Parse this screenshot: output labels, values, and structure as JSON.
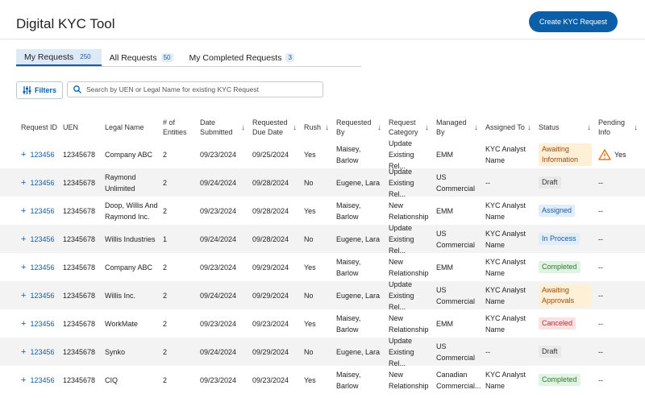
{
  "header": {
    "title": "Digital KYC Tool",
    "button": "Create KYC Request"
  },
  "tabs": [
    {
      "label": "My Requests",
      "count": 250,
      "active": true
    },
    {
      "label": "All Requests",
      "count": 50,
      "active": false
    },
    {
      "label": "My Completed Requests",
      "count": 3,
      "active": false
    }
  ],
  "toolbar": {
    "filters": "Filters",
    "search_placeholder": "Search by UEN or Legal Name for existing KYC Request"
  },
  "table": {
    "columns": [
      {
        "label": "Request ID",
        "sortable": false
      },
      {
        "label": "UEN",
        "sortable": false
      },
      {
        "label": "Legal Name",
        "sortable": false
      },
      {
        "label": "# of Entities",
        "sortable": false
      },
      {
        "label": "Date Submitted",
        "sortable": true
      },
      {
        "label": "Requested Due Date",
        "sortable": true
      },
      {
        "label": "Rush",
        "sortable": true
      },
      {
        "label": "Requested By",
        "sortable": true
      },
      {
        "label": "Request Category",
        "sortable": true
      },
      {
        "label": "Managed By",
        "sortable": true
      },
      {
        "label": "Assigned To",
        "sortable": true
      },
      {
        "label": "Status",
        "sortable": true
      },
      {
        "label": "Pending Info",
        "sortable": true
      }
    ],
    "rows": [
      {
        "cells": [
          "123456",
          "12345678",
          "Company ABC",
          2,
          "09/23/2024",
          "09/25/2024",
          "Yes",
          "Maisey, Barlow",
          "Update Existing Rel...",
          "EMM",
          "KYC Analyst Name",
          "Awaiting Information",
          "Yes"
        ],
        "status_color": "#9a4a12",
        "status_background": "#fdf0d6",
        "pending_warning": true
      },
      {
        "cells": [
          "123456",
          "12345678",
          "Raymond Unlimited",
          2,
          "09/24/2024",
          "09/28/2024",
          "No",
          "Eugene, Lara",
          "Update Existing Rel...",
          "US Commercial",
          "--",
          "Draft",
          "--"
        ],
        "status_color": "#333333",
        "status_background": "#e9e9e9",
        "pending_warning": false
      },
      {
        "cells": [
          "123456",
          "12345678",
          "Doop, Willis And Raymond Inc.",
          2,
          "09/23/2024",
          "09/28/2024",
          "Yes",
          "Maisey, Barlow",
          "New Relationship",
          "EMM",
          "KYC Analyst Name",
          "Assigned",
          "--"
        ],
        "status_color": "#1b5c9e",
        "status_background": "#e1edf9",
        "pending_warning": false
      },
      {
        "cells": [
          "123456",
          "12345678",
          "Willis Industries",
          1,
          "09/24/2024",
          "09/28/2024",
          "No",
          "Eugene, Lara",
          "Update Existing Rel...",
          "US Commercial",
          "KYC Analyst Name",
          "In Process",
          "--"
        ],
        "status_color": "#1b5c9e",
        "status_background": "#e1edf9",
        "pending_warning": false
      },
      {
        "cells": [
          "123456",
          "12345678",
          "Company ABC",
          2,
          "09/23/2024",
          "09/29/2024",
          "Yes",
          "Maisey, Barlow",
          "New Relationship",
          "EMM",
          "KYC Analyst Name",
          "Completed",
          "--"
        ],
        "status_color": "#2b7a32",
        "status_background": "#e2f3e3",
        "pending_warning": false
      },
      {
        "cells": [
          "123456",
          "12345678",
          "Willis Inc.",
          2,
          "09/24/2024",
          "09/29/2024",
          "No",
          "Eugene, Lara",
          "Update Existing Rel...",
          "US Commercial",
          "KYC Analyst Name",
          "Awaiting Approvals",
          "--"
        ],
        "status_color": "#9a4a12",
        "status_background": "#fdf0d6",
        "pending_warning": false
      },
      {
        "cells": [
          "123456",
          "12345678",
          "WorkMate",
          2,
          "09/23/2024",
          "09/23/2024",
          "Yes",
          "Maisey, Barlow",
          "New Relationship",
          "EMM",
          "KYC Analyst Name",
          "Canceled",
          "--"
        ],
        "status_color": "#b02e2e",
        "status_background": "#fbe2e2",
        "pending_warning": false
      },
      {
        "cells": [
          "123456",
          "12345678",
          "Synko",
          2,
          "09/24/2024",
          "09/29/2024",
          "No",
          "Eugene, Lara",
          "Update Existing Rel...",
          "US Commercial",
          "--",
          "Draft",
          "--"
        ],
        "status_color": "#333333",
        "status_background": "#e9e9e9",
        "pending_warning": false
      },
      {
        "cells": [
          "123456",
          "12345678",
          "CIQ",
          2,
          "09/23/2024",
          "09/23/2024",
          "Yes",
          "Maisey, Barlow",
          "New Relationship",
          "Canadian Commercial...",
          "KYC Analyst Name",
          "Completed",
          "--"
        ],
        "status_color": "#2b7a32",
        "status_background": "#e2f3e3",
        "pending_warning": false
      }
    ]
  }
}
